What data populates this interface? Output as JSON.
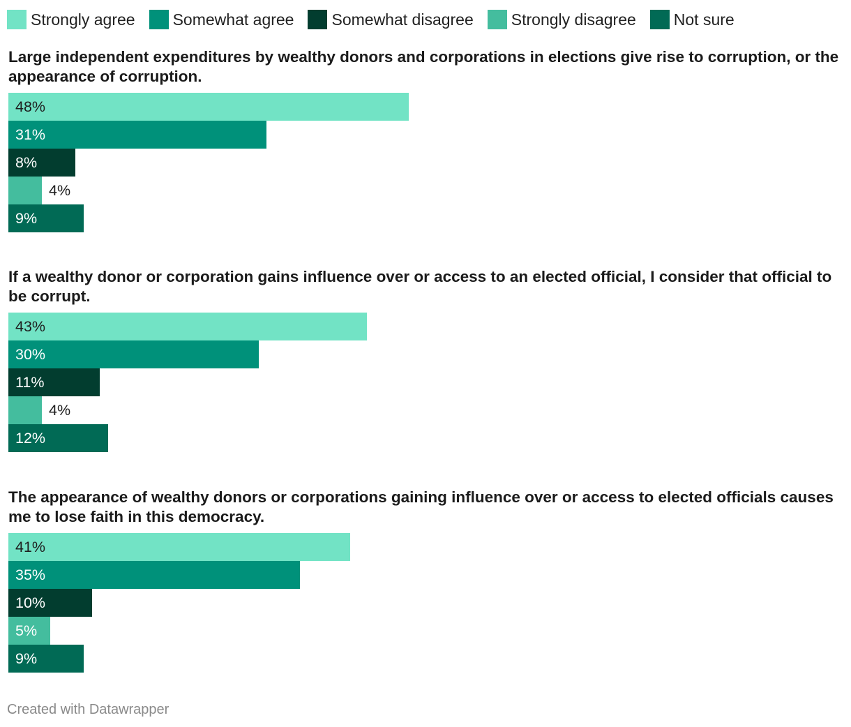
{
  "legend": [
    {
      "label": "Strongly agree",
      "color": "#72e3c5"
    },
    {
      "label": "Somewhat agree",
      "color": "#00917a"
    },
    {
      "label": "Somewhat disagree",
      "color": "#023d2f"
    },
    {
      "label": "Strongly disagree",
      "color": "#44bd9e"
    },
    {
      "label": "Not sure",
      "color": "#016a55"
    }
  ],
  "chart_data": [
    {
      "type": "bar",
      "orientation": "horizontal",
      "title": "Large independent expenditures by wealthy donors and corporations in elections give rise to corruption, or the appearance of corruption.",
      "categories": [
        "Strongly agree",
        "Somewhat agree",
        "Somewhat disagree",
        "Strongly disagree",
        "Not sure"
      ],
      "values": [
        48,
        31,
        8,
        4,
        9
      ],
      "value_labels": [
        "48%",
        "31%",
        "8%",
        "4%",
        "9%"
      ],
      "xlim": [
        0,
        100
      ]
    },
    {
      "type": "bar",
      "orientation": "horizontal",
      "title": "If a wealthy donor or corporation gains influence over or access to an elected official, I consider that official to be corrupt.",
      "categories": [
        "Strongly agree",
        "Somewhat agree",
        "Somewhat disagree",
        "Strongly disagree",
        "Not sure"
      ],
      "values": [
        43,
        30,
        11,
        4,
        12
      ],
      "value_labels": [
        "43%",
        "30%",
        "11%",
        "4%",
        "12%"
      ],
      "xlim": [
        0,
        100
      ]
    },
    {
      "type": "bar",
      "orientation": "horizontal",
      "title": "The appearance of wealthy donors or corporations gaining influence over or access to elected officials causes me to lose faith in this democracy.",
      "categories": [
        "Strongly agree",
        "Somewhat agree",
        "Somewhat disagree",
        "Strongly disagree",
        "Not sure"
      ],
      "values": [
        41,
        35,
        10,
        5,
        9
      ],
      "value_labels": [
        "41%",
        "35%",
        "10%",
        "5%",
        "9%"
      ],
      "xlim": [
        0,
        100
      ]
    }
  ],
  "footer": {
    "credit": "Created with Datawrapper"
  }
}
